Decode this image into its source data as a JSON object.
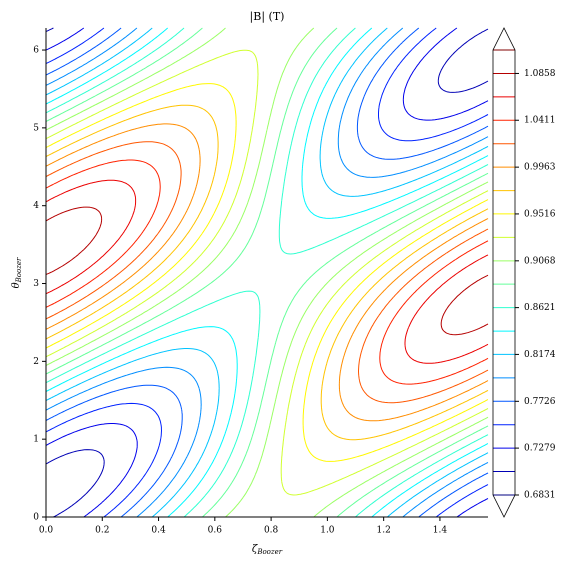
{
  "chart_data": {
    "type": "contour",
    "title": "|B| (T)",
    "xlabel": {
      "symbol": "ζ",
      "subscript": "Boozer"
    },
    "ylabel": {
      "symbol": "θ",
      "subscript": "Boozer"
    },
    "xlim": [
      0,
      1.5708
    ],
    "ylim": [
      0,
      6.2832
    ],
    "xticks": [
      {
        "value": 0,
        "label": "0.0"
      },
      0.2,
      0.4,
      0.6,
      0.8,
      {
        "value": 1,
        "label": "1.0"
      },
      1.2,
      1.4
    ],
    "yticks": [
      0,
      1,
      2,
      3,
      4,
      5,
      6
    ],
    "levels": [
      0.6831,
      0.7055,
      0.7279,
      0.7502,
      0.7726,
      0.795,
      0.8174,
      0.8397,
      0.8621,
      0.8845,
      0.9068,
      0.9292,
      0.9516,
      0.9739,
      0.9963,
      1.0187,
      1.0411,
      1.0634,
      1.0858,
      1.1082
    ],
    "colors": [
      "#000080",
      "#0000b5",
      "#0000eb",
      "#0022ff",
      "#0057ff",
      "#008dff",
      "#00c3ff",
      "#00f8ff",
      "#2fffd0",
      "#65ff9a",
      "#9aff65",
      "#d0ff2f",
      "#fff800",
      "#ffc300",
      "#ff8d00",
      "#ff5700",
      "#ff2200",
      "#eb0000",
      "#b50000",
      "#800000"
    ],
    "colorbar_ticks": [
      0.6831,
      0.7279,
      0.7726,
      0.8174,
      0.8621,
      0.9068,
      0.9516,
      0.9963,
      1.0411,
      1.0858
    ],
    "colorbar_extend": "both"
  }
}
